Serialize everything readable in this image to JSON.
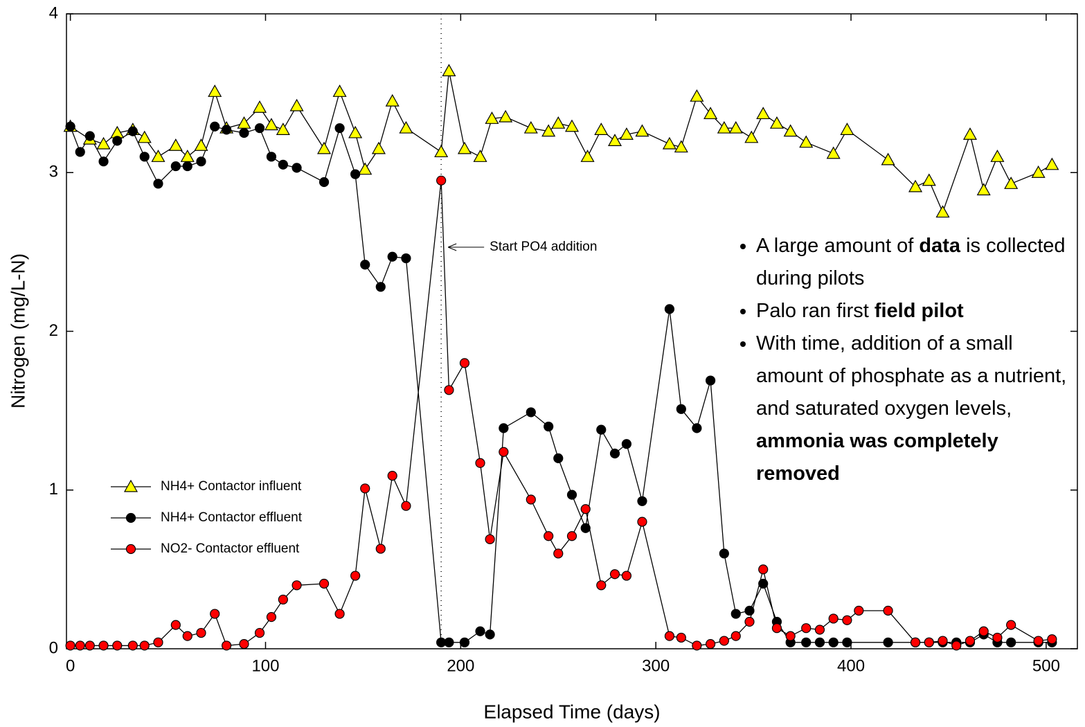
{
  "chart_data": {
    "type": "line",
    "xlabel": "Elapsed Time (days)",
    "ylabel": "Nitrogen (mg/L-N)",
    "xlim": [
      -2,
      516
    ],
    "xticks": [
      0,
      100,
      200,
      300,
      400,
      500
    ],
    "ylim": [
      0,
      4
    ],
    "yticks": [
      0,
      1,
      2,
      3,
      4
    ],
    "legend": "lower left",
    "annotation": {
      "text": "Start PO4 addition",
      "x": 190
    },
    "series": [
      {
        "name": "NH4+ Contactor influent",
        "color": "#ffff00",
        "marker": "triangle",
        "x": [
          0,
          10,
          17,
          24,
          32,
          38,
          45,
          54,
          60,
          67,
          74,
          80,
          89,
          97,
          103,
          109,
          116,
          130,
          138,
          146,
          151,
          158,
          165,
          172,
          190,
          194,
          202,
          210,
          216,
          223,
          236,
          245,
          250,
          257,
          265,
          272,
          279,
          285,
          293,
          307,
          313,
          321,
          328,
          335,
          341,
          349,
          355,
          362,
          369,
          377,
          391,
          398,
          419,
          433,
          440,
          447,
          461,
          468,
          475,
          482,
          496,
          503
        ],
        "values": [
          3.29,
          3.21,
          3.18,
          3.25,
          3.27,
          3.22,
          3.1,
          3.17,
          3.1,
          3.17,
          3.51,
          3.28,
          3.31,
          3.41,
          3.3,
          3.27,
          3.42,
          3.15,
          3.51,
          3.25,
          3.02,
          3.15,
          3.45,
          3.28,
          3.13,
          3.64,
          3.15,
          3.1,
          3.34,
          3.35,
          3.28,
          3.26,
          3.31,
          3.29,
          3.1,
          3.27,
          3.2,
          3.24,
          3.26,
          3.18,
          3.16,
          3.48,
          3.37,
          3.28,
          3.28,
          3.22,
          3.37,
          3.31,
          3.26,
          3.19,
          3.12,
          3.27,
          3.08,
          2.91,
          2.95,
          2.75,
          3.24,
          2.89,
          3.1,
          2.93,
          3.0,
          3.05
        ]
      },
      {
        "name": "NH4+ Contactor effluent",
        "color": "#000000",
        "marker": "circle",
        "x": [
          0,
          5,
          10,
          17,
          24,
          32,
          38,
          45,
          54,
          60,
          67,
          74,
          80,
          89,
          97,
          103,
          109,
          116,
          130,
          138,
          146,
          151,
          159,
          165,
          172,
          190,
          194,
          202,
          210,
          215,
          222,
          236,
          245,
          250,
          257,
          264,
          272,
          279,
          285,
          293,
          307,
          313,
          321,
          328,
          335,
          341,
          348,
          355,
          362,
          369,
          377,
          384,
          391,
          398,
          419,
          433,
          440,
          447,
          454,
          461,
          468,
          475,
          482,
          496,
          503
        ],
        "values": [
          3.29,
          3.13,
          3.23,
          3.07,
          3.2,
          3.26,
          3.1,
          2.93,
          3.04,
          3.04,
          3.07,
          3.29,
          3.27,
          3.25,
          3.28,
          3.1,
          3.05,
          3.03,
          2.94,
          3.28,
          2.99,
          2.42,
          2.28,
          2.47,
          2.46,
          0.04,
          0.04,
          0.04,
          0.11,
          0.09,
          1.39,
          1.49,
          1.4,
          1.2,
          0.97,
          0.76,
          1.38,
          1.23,
          1.29,
          0.93,
          2.14,
          1.51,
          1.39,
          1.69,
          0.6,
          0.22,
          0.24,
          0.41,
          0.17,
          0.04,
          0.04,
          0.04,
          0.04,
          0.04,
          0.04,
          0.04,
          0.04,
          0.04,
          0.04,
          0.04,
          0.09,
          0.04,
          0.04,
          0.04,
          0.04
        ]
      },
      {
        "name": "NO2- Contactor effluent",
        "color": "#ff0000",
        "marker": "circle",
        "x": [
          0,
          5,
          10,
          17,
          24,
          32,
          38,
          45,
          54,
          60,
          67,
          74,
          80,
          89,
          97,
          103,
          109,
          116,
          130,
          138,
          146,
          151,
          159,
          165,
          172,
          190,
          194,
          202,
          210,
          215,
          222,
          236,
          245,
          250,
          257,
          264,
          272,
          279,
          285,
          293,
          307,
          313,
          321,
          328,
          335,
          341,
          348,
          355,
          362,
          369,
          377,
          384,
          391,
          398,
          404,
          419,
          433,
          440,
          447,
          454,
          461,
          468,
          475,
          482,
          496,
          503
        ],
        "values": [
          0.02,
          0.02,
          0.02,
          0.02,
          0.02,
          0.02,
          0.02,
          0.04,
          0.15,
          0.08,
          0.1,
          0.22,
          0.02,
          0.03,
          0.1,
          0.2,
          0.31,
          0.4,
          0.41,
          0.22,
          0.46,
          1.01,
          0.63,
          1.09,
          0.9,
          2.95,
          1.63,
          1.8,
          1.17,
          0.69,
          1.24,
          0.94,
          0.71,
          0.6,
          0.71,
          0.88,
          0.4,
          0.47,
          0.46,
          0.8,
          0.08,
          0.07,
          0.02,
          0.03,
          0.05,
          0.08,
          0.17,
          0.5,
          0.13,
          0.08,
          0.13,
          0.12,
          0.19,
          0.18,
          0.24,
          0.24,
          0.04,
          0.04,
          0.05,
          0.02,
          0.05,
          0.11,
          0.07,
          0.15,
          0.05,
          0.06
        ]
      }
    ],
    "notes": [
      [
        {
          "text": "A large amount of "
        },
        {
          "text": "data",
          "bold": true
        },
        {
          "text": " is collected during pilots"
        }
      ],
      [
        {
          "text": "Palo ran first "
        },
        {
          "text": "field pilot",
          "bold": true
        }
      ],
      [
        {
          "text": "With time, addition of a small amount of phosphate as a nutrient, and saturated oxygen levels, "
        },
        {
          "text": "ammonia was completely removed",
          "bold": true
        }
      ]
    ]
  }
}
